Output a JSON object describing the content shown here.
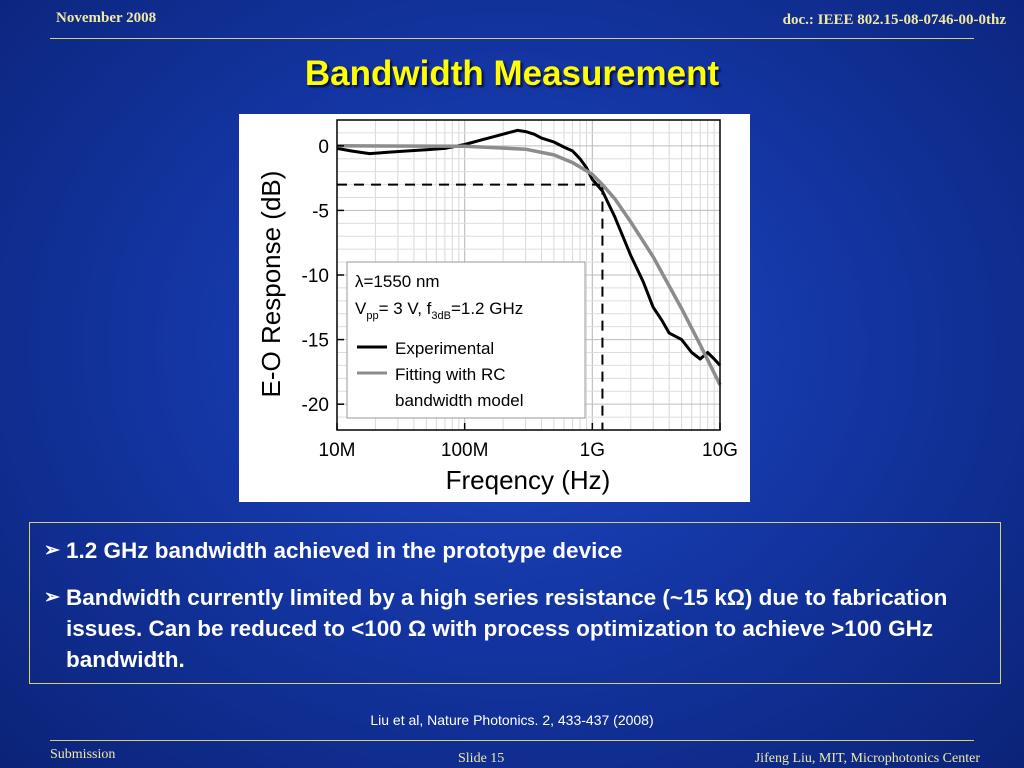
{
  "header": {
    "date": "November 2008",
    "doc_id": "doc.: IEEE 802.15-08-0746-00-0thz"
  },
  "title": "Bandwidth Measurement",
  "chart_data": {
    "type": "line",
    "xlabel": "Freqency (Hz)",
    "ylabel": "E-O Response (dB)",
    "xscale": "log",
    "xlim": [
      10000000,
      10000000000
    ],
    "ylim": [
      -22,
      2
    ],
    "xticks": [
      {
        "value": 10000000,
        "label": "10M"
      },
      {
        "value": 100000000,
        "label": "100M"
      },
      {
        "value": 1000000000,
        "label": "1G"
      },
      {
        "value": 10000000000,
        "label": "10G"
      }
    ],
    "yticks": [
      {
        "value": 0,
        "label": "0"
      },
      {
        "value": -5,
        "label": "-5"
      },
      {
        "value": -10,
        "label": "-10"
      },
      {
        "value": -15,
        "label": "-15"
      },
      {
        "value": -20,
        "label": "-20"
      }
    ],
    "grid": true,
    "legend_position": "bottom-left inside plot",
    "annotation": {
      "line1": "λ=1550 nm",
      "line2_prefix": "V",
      "line2_sub1": "pp",
      "line2_mid": "= 3 V, f",
      "line2_sub2": "3dB",
      "line2_suffix": "=1.2 GHz"
    },
    "reference_lines": {
      "y_db": -3,
      "x_hz": 1200000000
    },
    "series": [
      {
        "name": "Experimental",
        "color": "#000000",
        "points": [
          [
            10000000,
            -0.2
          ],
          [
            13000000,
            -0.4
          ],
          [
            18000000,
            -0.6
          ],
          [
            25000000,
            -0.5
          ],
          [
            35000000,
            -0.4
          ],
          [
            50000000,
            -0.3
          ],
          [
            70000000,
            -0.2
          ],
          [
            100000000,
            0.1
          ],
          [
            140000000,
            0.5
          ],
          [
            200000000,
            0.9
          ],
          [
            260000000,
            1.2
          ],
          [
            300000000,
            1.1
          ],
          [
            350000000,
            0.9
          ],
          [
            400000000,
            0.6
          ],
          [
            500000000,
            0.3
          ],
          [
            600000000,
            -0.1
          ],
          [
            700000000,
            -0.4
          ],
          [
            800000000,
            -1.0
          ],
          [
            900000000,
            -1.7
          ],
          [
            1000000000,
            -2.6
          ],
          [
            1200000000,
            -3.5
          ],
          [
            1500000000,
            -5.5
          ],
          [
            2000000000,
            -8.5
          ],
          [
            2500000000,
            -10.5
          ],
          [
            3000000000,
            -12.5
          ],
          [
            3500000000,
            -13.5
          ],
          [
            4000000000,
            -14.5
          ],
          [
            5000000000,
            -15.0
          ],
          [
            6000000000,
            -16.0
          ],
          [
            7000000000,
            -16.5
          ],
          [
            8000000000,
            -16.0
          ],
          [
            9000000000,
            -16.5
          ],
          [
            10000000000,
            -17.0
          ]
        ]
      },
      {
        "name": "Fitting with RC bandwidth model",
        "color": "#8c8c8c",
        "model": "RC",
        "f3db_hz": 1200000000,
        "points": [
          [
            10000000,
            0
          ],
          [
            100000000,
            -0.03
          ],
          [
            300000000,
            -0.26
          ],
          [
            500000000,
            -0.7
          ],
          [
            700000000,
            -1.3
          ],
          [
            1000000000,
            -2.2
          ],
          [
            1200000000,
            -3.0
          ],
          [
            1500000000,
            -4.1
          ],
          [
            2000000000,
            -5.9
          ],
          [
            3000000000,
            -8.6
          ],
          [
            5000000000,
            -12.6
          ],
          [
            7000000000,
            -15.4
          ],
          [
            10000000000,
            -18.5
          ]
        ]
      }
    ]
  },
  "legend": {
    "items": [
      {
        "lines": [
          "Experimental"
        ],
        "color": "#000000"
      },
      {
        "lines": [
          "Fitting with RC",
          "bandwidth model"
        ],
        "color": "#8c8c8c"
      }
    ]
  },
  "bullets": [
    "1.2 GHz bandwidth achieved in the prototype device",
    "Bandwidth currently limited by a high series resistance (~15 kΩ) due to fabrication issues. Can be reduced to <100 Ω with process optimization to achieve >100 GHz bandwidth."
  ],
  "citation": "Liu et al, Nature Photonics. 2, 433-437  (2008)",
  "footer": {
    "left": "Submission",
    "slide": "Slide 15",
    "author": "Jifeng Liu, MIT, Microphotonics Center"
  },
  "colors": {
    "title": "#ffff00",
    "header_text": "#f0e9a6",
    "rule": "#d8cf6e"
  }
}
